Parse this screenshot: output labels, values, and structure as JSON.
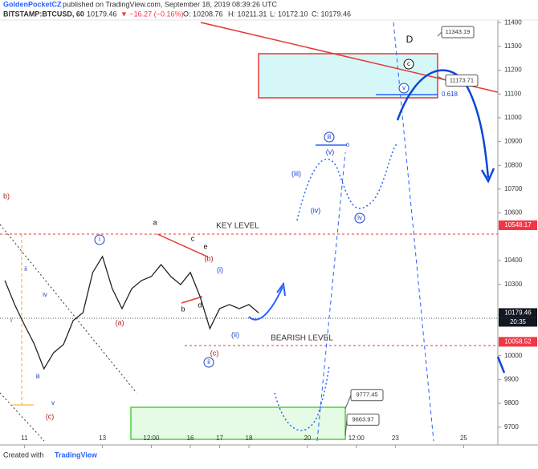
{
  "header": {
    "author": "GoldenPocketCZ",
    "published": "published on TradingView.com, September 18, 2019 08:39:26 UTC",
    "symbol": "BITSTAMP:BTCUSD, 60",
    "last": "10179.46",
    "change": "▼ −16.27 (−0.16%)",
    "ohlc": [
      "O: 10208.76",
      "H: 10211.31",
      "L: 10172.10",
      "C: 10179.46"
    ]
  },
  "chart_data": {
    "type": "line",
    "name": "BTCUSD",
    "color": "#222222",
    "categories": [
      null,
      null,
      "11",
      null,
      null,
      null,
      null,
      null,
      null,
      null,
      "13",
      null,
      null,
      null,
      null,
      "12:00",
      null,
      null,
      null,
      "16",
      null,
      null,
      "17",
      null,
      null,
      "18",
      null,
      null,
      null,
      null,
      null,
      "20",
      null,
      null,
      null,
      null,
      "12:00",
      null,
      null,
      null,
      "23",
      null,
      null,
      null,
      null,
      null,
      null,
      "25",
      null,
      null,
      null
    ],
    "values": [
      10316,
      10215,
      10130,
      10050,
      9945,
      10013,
      10047,
      10148,
      10181,
      10350,
      10417,
      10282,
      10198,
      10282,
      10316,
      10333,
      10383,
      10333,
      10299,
      10350,
      10248,
      10114,
      10198,
      10215,
      10198,
      10215,
      10180,
      null,
      null,
      null,
      null,
      null,
      null,
      null,
      null,
      null,
      null,
      null,
      null,
      null,
      null,
      null,
      null,
      null,
      null,
      null,
      null,
      null,
      null,
      null,
      null
    ],
    "ylim": [
      9625,
      11495
    ],
    "yticks": [
      9700,
      9800,
      9900,
      10000,
      10300,
      10400,
      10600,
      10700,
      10800,
      10900,
      11000,
      11100,
      11200,
      11300,
      11400
    ],
    "price_labels": [
      {
        "value": 10548.17,
        "color": "#f23645"
      },
      {
        "value": 10179.46,
        "color": "#131722"
      },
      {
        "value": 10058.52,
        "color": "#f23645"
      }
    ],
    "countdown": "20:35",
    "callouts": [
      11343.19,
      11173.71,
      9777.45,
      9663.97
    ],
    "annotations": [
      "KEY LEVEL",
      "BEARISH LEVEL",
      "D",
      "0.618",
      "0",
      "b)",
      "i",
      "ii",
      "iii",
      "iv",
      "v",
      "(a)",
      "(b)",
      "(c)",
      "a",
      "b",
      "c",
      "d",
      "e",
      "(i)",
      "(ii)",
      "ii",
      "i",
      "iii",
      "(iii)",
      "(iv)",
      "(v)",
      "iv",
      "c",
      "v",
      "(c)"
    ]
  },
  "footer": {
    "created": "Created with",
    "brand": "TradingView"
  }
}
